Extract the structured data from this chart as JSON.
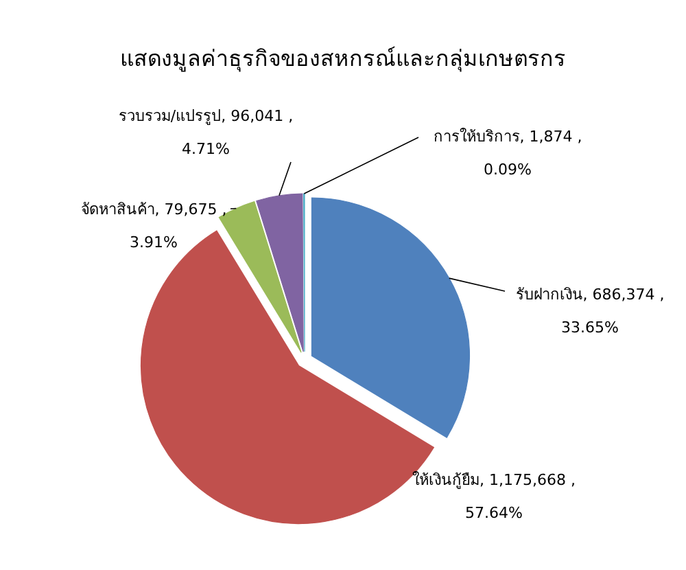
{
  "chart_data": {
    "type": "pie",
    "title": "แสดงมูลค่าธุรกิจของสหกรณ์และกลุ่มเกษตรกร",
    "categories": [
      "รับฝากเงิน",
      "ให้เงินกู้ยืม",
      "จัดหาสินค้า",
      "รวบรวม/แปรรูป",
      "การให้บริการ"
    ],
    "values": [
      686374,
      1175668,
      79675,
      96041,
      1874
    ],
    "colors": [
      "#4f81bd",
      "#c0504d",
      "#9bbb59",
      "#8064a2",
      "#4bacc6"
    ],
    "value_labels": [
      "686,374 ,\n33.65%",
      "1,175,668 ,\n57.64%",
      "79,675 ,\n3.91%",
      "96,041 ,\n4.71%",
      "1,874 ,\n0.09%"
    ],
    "legend": false
  }
}
